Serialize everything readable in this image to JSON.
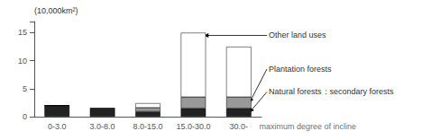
{
  "chart_data": {
    "type": "bar",
    "stacked": true,
    "categories": [
      "0-3.0",
      "3.0-8.0",
      "8.0-15.0",
      "15.0-30.0",
      "30.0-"
    ],
    "series": [
      {
        "name": "Natural forests：secondary forests",
        "color": "#222222",
        "values": [
          2.0,
          1.4,
          0.9,
          1.5,
          1.5
        ]
      },
      {
        "name": "Plantation forests",
        "color": "#999999",
        "values": [
          0.0,
          0.1,
          0.7,
          2.0,
          2.0
        ]
      },
      {
        "name": "Other land uses",
        "color": "#ffffff",
        "values": [
          0.0,
          0.0,
          0.8,
          11.5,
          9.0
        ]
      }
    ],
    "xlabel": "maximum degree of incline",
    "ylabel": "(10,000km²)",
    "ylim": [
      0,
      17
    ],
    "yticks": [
      0,
      5,
      10,
      15
    ],
    "grid": false,
    "annotations": [
      {
        "text": "Other land uses",
        "category": "15.0-30.0"
      },
      {
        "text": "Plantation forests",
        "category": "30.0-"
      },
      {
        "text": "Natural forests：secondary forests",
        "category": "30.0-"
      }
    ]
  }
}
